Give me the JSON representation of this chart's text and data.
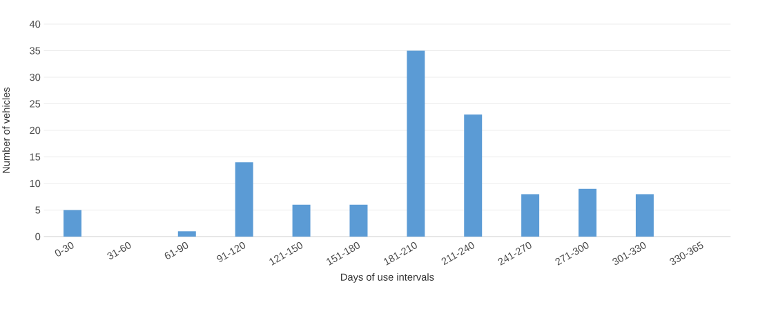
{
  "chart_data": {
    "type": "bar",
    "xlabel": "Days of use intervals",
    "ylabel": "Number of vehicles",
    "categories": [
      "0-30",
      "31-60",
      "61-90",
      "91-120",
      "121-150",
      "151-180",
      "181-210",
      "211-240",
      "241-270",
      "271-300",
      "301-330",
      "330-365"
    ],
    "values": [
      5,
      0,
      1,
      14,
      6,
      6,
      35,
      23,
      8,
      9,
      8,
      0
    ],
    "color": "#5b9bd5",
    "ylim": [
      0,
      40
    ],
    "yticks": [
      0,
      5,
      10,
      15,
      20,
      25,
      30,
      35,
      40
    ],
    "grid": "y"
  }
}
